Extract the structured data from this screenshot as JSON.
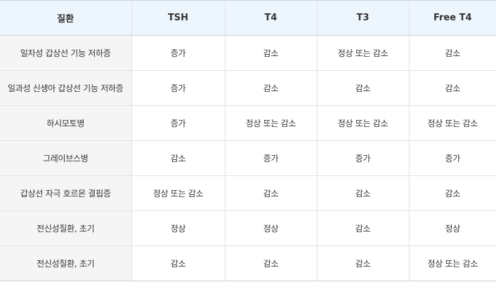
{
  "table": {
    "headers": {
      "disease": "질환",
      "tsh": "TSH",
      "t4": "T4",
      "t3": "T3",
      "free_t4": "Free T4"
    },
    "rows": [
      {
        "disease": "일차성 갑상선 기능 저하증",
        "tsh": "증가",
        "t4": "감소",
        "t3": "정상 또는 감소",
        "free_t4": "감소"
      },
      {
        "disease": "일과성 신생아 갑상선 기능 저하증",
        "tsh": "증가",
        "t4": "감소",
        "t3": "감소",
        "free_t4": "감소"
      },
      {
        "disease": "하시모토병",
        "tsh": "증가",
        "t4": "정상 또는 감소",
        "t3": "정상 또는 감소",
        "free_t4": "정상 또는 감소"
      },
      {
        "disease": "그레이브스병",
        "tsh": "감소",
        "t4": "증가",
        "t3": "증가",
        "free_t4": "증가"
      },
      {
        "disease": "갑상선 자극 호르몬 결핍증",
        "tsh": "정상 또는 감소",
        "t4": "감소",
        "t3": "감소",
        "free_t4": "감소"
      },
      {
        "disease": "전신성질환, 초기",
        "tsh": "정상",
        "t4": "정상",
        "t3": "감소",
        "free_t4": "정상"
      },
      {
        "disease": "전신성질환, 초기",
        "tsh": "감소",
        "t4": "감소",
        "t3": "감소",
        "free_t4": "정상 또는 감소"
      }
    ]
  }
}
